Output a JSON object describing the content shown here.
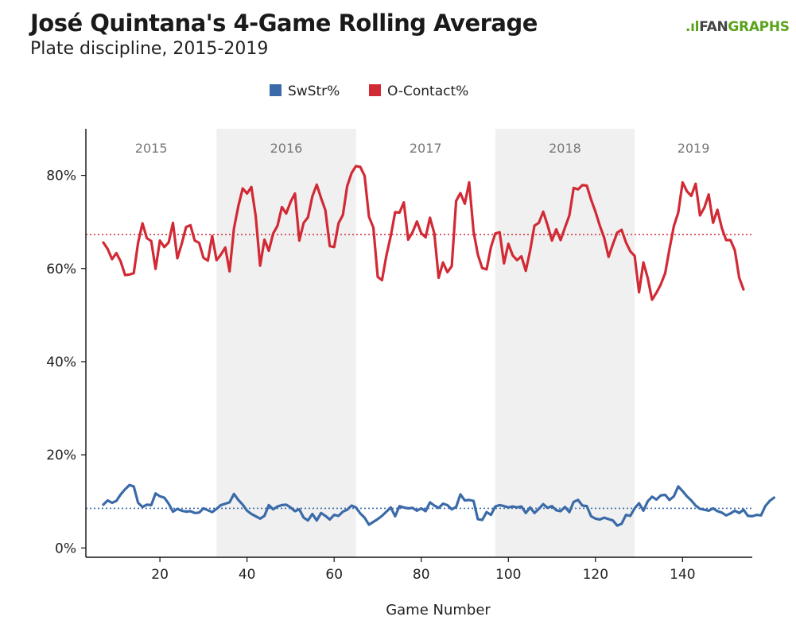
{
  "title": "José Quintana's 4-Game Rolling Average",
  "subtitle": "Plate discipline, 2015-2019",
  "logo": {
    "prefix": "FAN",
    "suffix": "GRAPHS",
    "mark": "fangraphs-logo"
  },
  "chart_data": {
    "type": "line",
    "xlabel": "Game Number",
    "ylabel": "",
    "xlim": [
      3,
      156
    ],
    "ylim": [
      -2,
      90
    ],
    "x_ticks": [
      20,
      40,
      60,
      80,
      100,
      120,
      140
    ],
    "y_ticks": [
      0,
      20,
      40,
      60,
      80
    ],
    "y_tick_labels": [
      "0%",
      "20%",
      "40%",
      "60%",
      "80%"
    ],
    "legend": {
      "placement": "top-center"
    },
    "seasons": [
      {
        "label": "2015",
        "start": 3,
        "end": 33,
        "shaded": false
      },
      {
        "label": "2016",
        "start": 33,
        "end": 65,
        "shaded": true
      },
      {
        "label": "2017",
        "start": 65,
        "end": 97,
        "shaded": false
      },
      {
        "label": "2018",
        "start": 97,
        "end": 129,
        "shaded": true
      },
      {
        "label": "2019",
        "start": 129,
        "end": 156,
        "shaded": false
      }
    ],
    "start_game": 7,
    "series": [
      {
        "name": "SwStr%",
        "color": "#3a6aa8",
        "average": 8.5,
        "values": [
          9.3,
          10.2,
          9.7,
          10.1,
          11.5,
          12.6,
          13.5,
          13.2,
          9.7,
          8.8,
          9.3,
          9.2,
          11.7,
          11.1,
          10.8,
          9.5,
          7.8,
          8.4,
          8.0,
          7.8,
          7.9,
          7.5,
          7.6,
          8.5,
          8.1,
          7.7,
          8.4,
          9.2,
          9.5,
          9.8,
          11.6,
          10.3,
          9.3,
          8.0,
          7.3,
          6.8,
          6.3,
          6.9,
          9.2,
          8.3,
          8.9,
          9.2,
          9.3,
          8.7,
          7.9,
          8.3,
          6.5,
          5.9,
          7.3,
          5.9,
          7.5,
          6.9,
          6.1,
          7.1,
          6.9,
          7.8,
          8.2,
          9.1,
          8.7,
          7.4,
          6.5,
          5.0,
          5.6,
          6.2,
          6.9,
          7.8,
          8.7,
          6.8,
          9.0,
          8.7,
          8.5,
          8.6,
          8.0,
          8.5,
          7.9,
          9.8,
          9.1,
          8.6,
          9.5,
          9.2,
          8.3,
          8.8,
          11.5,
          10.2,
          10.3,
          10.1,
          6.2,
          6.0,
          7.7,
          7.1,
          8.9,
          9.2,
          9.0,
          8.7,
          8.9,
          8.7,
          8.9,
          7.5,
          8.7,
          7.5,
          8.4,
          9.4,
          8.6,
          9.0,
          8.1,
          7.9,
          8.8,
          7.7,
          9.9,
          10.3,
          9.1,
          9.0,
          6.8,
          6.3,
          6.1,
          6.5,
          6.2,
          5.9,
          4.8,
          5.2,
          7.1,
          6.9,
          8.5,
          9.6,
          8.0,
          10.0,
          11.0,
          10.4,
          11.3,
          11.4,
          10.3,
          11.1,
          13.2,
          12.2,
          11.1,
          10.2,
          9.1,
          8.4,
          8.2,
          8.0,
          8.5,
          7.9,
          7.6,
          7.0,
          7.4,
          8.0,
          7.5,
          8.2,
          6.9,
          6.8,
          7.1,
          7.0,
          9.0,
          10.1,
          10.8
        ]
      },
      {
        "name": "O-Contact%",
        "color": "#d12a35",
        "average": 67.3,
        "values": [
          65.6,
          64.2,
          62.0,
          63.3,
          61.5,
          58.6,
          58.7,
          59.0,
          65.6,
          69.7,
          66.5,
          65.9,
          59.9,
          66.0,
          64.6,
          65.6,
          69.8,
          62.2,
          65.3,
          68.9,
          69.3,
          66.0,
          65.5,
          62.3,
          61.7,
          67.0,
          61.8,
          63.0,
          64.5,
          59.4,
          68.6,
          73.4,
          77.2,
          76.1,
          77.5,
          71.2,
          60.6,
          66.2,
          63.8,
          67.5,
          69.2,
          73.2,
          71.8,
          74.3,
          76.1,
          66.0,
          69.8,
          71.0,
          75.5,
          78.0,
          75.1,
          72.5,
          64.8,
          64.6,
          69.7,
          71.5,
          77.7,
          80.5,
          82.0,
          81.8,
          79.9,
          71.1,
          68.8,
          58.2,
          57.5,
          62.8,
          67.0,
          72.1,
          72.0,
          74.2,
          66.2,
          67.8,
          70.1,
          67.6,
          66.7,
          70.9,
          67.5,
          58.0,
          61.3,
          59.2,
          60.5,
          74.5,
          76.2,
          73.9,
          78.5,
          68.0,
          63.0,
          60.1,
          59.8,
          64.6,
          67.5,
          67.8,
          61.1,
          65.3,
          62.8,
          61.8,
          62.6,
          59.5,
          63.9,
          69.2,
          69.8,
          72.2,
          69.3,
          66.0,
          68.4,
          66.1,
          68.8,
          71.4,
          77.3,
          77.0,
          77.9,
          77.8,
          74.8,
          72.2,
          69.2,
          66.6,
          62.5,
          65.2,
          67.7,
          68.3,
          65.6,
          63.7,
          62.7,
          54.9,
          61.3,
          58.0,
          53.3,
          54.8,
          56.6,
          59.0,
          64.2,
          69.1,
          72.0,
          78.5,
          76.6,
          75.6,
          78.2,
          71.4,
          73.1,
          75.9,
          69.8,
          72.6,
          68.7,
          66.1,
          66.1,
          63.9,
          58.0,
          55.5
        ]
      }
    ]
  }
}
